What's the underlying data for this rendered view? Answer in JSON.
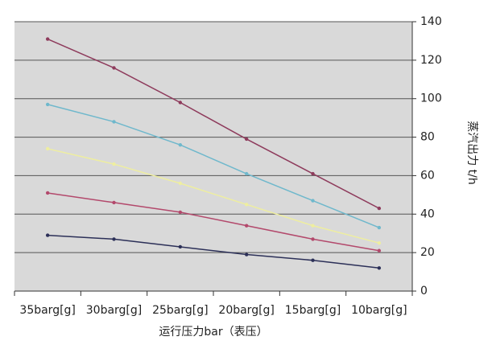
{
  "chart_data": {
    "type": "line",
    "x_label": "运行压力bar（表压）",
    "y_label": "蒸汽出力 t/h",
    "categories": [
      "35barg[g]",
      "30barg[g]",
      "25barg[g]",
      "20barg[g]",
      "15barg[g]",
      "10barg[g]"
    ],
    "series": [
      {
        "color": "#8e3b5c",
        "values": [
          131,
          116,
          98,
          79,
          61,
          43
        ]
      },
      {
        "color": "#6fb8cc",
        "values": [
          97,
          88,
          76,
          61,
          47,
          33
        ]
      },
      {
        "color": "#eeeea0",
        "values": [
          74,
          66,
          56,
          45,
          34,
          25
        ]
      },
      {
        "color": "#b3496c",
        "values": [
          51,
          46,
          41,
          34,
          27,
          21
        ]
      },
      {
        "color": "#2c3058",
        "values": [
          29,
          27,
          23,
          19,
          16,
          12
        ]
      }
    ],
    "ylim": [
      0,
      140
    ],
    "yticks": [
      0,
      20,
      40,
      60,
      80,
      100,
      120,
      140
    ],
    "grid": true
  }
}
